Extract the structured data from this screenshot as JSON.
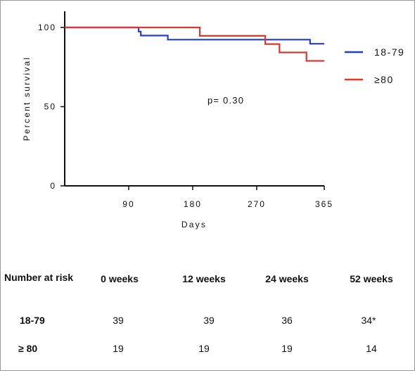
{
  "chart_data": {
    "type": "line",
    "step": true,
    "ylabel": "Percent survival",
    "xlabel": "Days",
    "xlim": [
      0,
      365
    ],
    "ylim": [
      0,
      100
    ],
    "x_ticks": [
      "90",
      "180",
      "270",
      "365"
    ],
    "x_tick_values": [
      90,
      180,
      270,
      365
    ],
    "y_ticks": [
      "0",
      "50",
      "100"
    ],
    "y_tick_values": [
      0,
      50,
      100
    ],
    "annotation": "p= 0.30",
    "legend_position": "right",
    "series": [
      {
        "name": "18-79",
        "color": "#1f3fd0",
        "points": [
          [
            0,
            100
          ],
          [
            104,
            100
          ],
          [
            104,
            97.4
          ],
          [
            107,
            97.4
          ],
          [
            107,
            94.9
          ],
          [
            145,
            94.9
          ],
          [
            145,
            92.3
          ],
          [
            345,
            92.3
          ],
          [
            345,
            89.7
          ],
          [
            365,
            89.7
          ]
        ]
      },
      {
        "name": "≥80",
        "color": "#e0362c",
        "points": [
          [
            0,
            100
          ],
          [
            190,
            100
          ],
          [
            190,
            94.7
          ],
          [
            282,
            94.7
          ],
          [
            282,
            89.5
          ],
          [
            302,
            89.5
          ],
          [
            302,
            84.2
          ],
          [
            340,
            84.2
          ],
          [
            340,
            78.9
          ],
          [
            365,
            78.9
          ]
        ]
      }
    ]
  },
  "risk_table": {
    "title": "Number at risk",
    "columns": [
      "0 weeks",
      "12 weeks",
      "24 weeks",
      "52 weeks"
    ],
    "rows": [
      {
        "label": "18-79",
        "values": [
          "39",
          "39",
          "36",
          "34*"
        ]
      },
      {
        "label": "≥ 80",
        "values": [
          "19",
          "19",
          "19",
          "14"
        ]
      }
    ]
  }
}
